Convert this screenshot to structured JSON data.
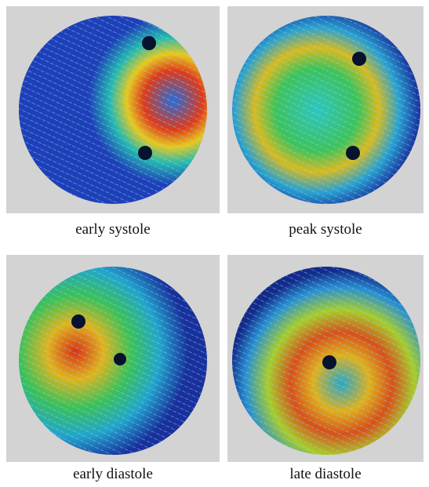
{
  "panels": [
    {
      "caption": "early systole"
    },
    {
      "caption": "peak systole"
    },
    {
      "caption": "early diastole"
    },
    {
      "caption": "late diastole"
    }
  ]
}
